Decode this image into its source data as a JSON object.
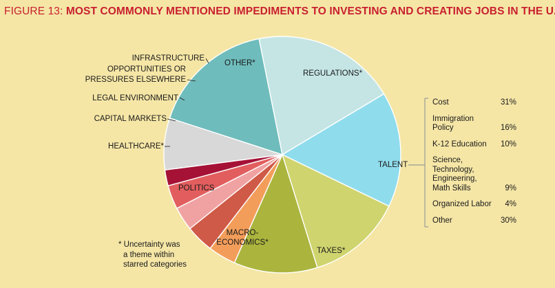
{
  "title": {
    "prefix": "FIGURE 13:",
    "main": "MOST COMMONLY MENTIONED IMPEDIMENTS TO INVESTING AND CREATING JOBS IN THE U.S."
  },
  "colors": {
    "background": "#f5e6a6",
    "title": "#c8202f",
    "bracket": "#999999"
  },
  "chart_data": {
    "type": "pie",
    "title": "MOST COMMONLY MENTIONED IMPEDIMENTS TO INVESTING AND CREATING JOBS IN THE U.S.",
    "slices": [
      {
        "label": "REGULATIONS*",
        "value": 15.5,
        "color": "#6fbcbc"
      },
      {
        "label": "TALENT",
        "value": 18.0,
        "color": "#c5e5e5"
      },
      {
        "label": "TAXES*",
        "value": 14.5,
        "color": "#8fdcec"
      },
      {
        "label": "MACRO-ECONOMICS*",
        "value": 12.0,
        "color": "#cfd46e"
      },
      {
        "label": "POLITICS",
        "value": 10.5,
        "color": "#abb53e"
      },
      {
        "label": "HEALTHCARE*",
        "value": 3.5,
        "color": "#f39d5a"
      },
      {
        "label": "CAPITAL MARKETS",
        "value": 3.5,
        "color": "#cf5a48"
      },
      {
        "label": "LEGAL ENVIRONMENT",
        "value": 3.0,
        "color": "#f0a2a2"
      },
      {
        "label": "OPPORTUNITIES OR PRESSURES ELSEWHERE",
        "value": 3.0,
        "color": "#e25e5e"
      },
      {
        "label": "INFRASTRUCTURE",
        "value": 2.0,
        "color": "#a51236"
      },
      {
        "label": "OTHER*",
        "value": 6.5,
        "color": "#d8d8d8"
      }
    ],
    "talent_breakdown": [
      {
        "label": "Cost",
        "value": "31%"
      },
      {
        "label": "Immigration\nPolicy",
        "value": "16%"
      },
      {
        "label": "K-12 Education",
        "value": "10%"
      },
      {
        "label": "Science,\nTechnology,\nEngineering,\nMath Skills",
        "value": "9%"
      },
      {
        "label": "Organized Labor",
        "value": "4%"
      },
      {
        "label": "Other",
        "value": "30%"
      }
    ]
  },
  "labels": {
    "infrastructure": "INFRASTRUCTURE",
    "opportunities_1": "OPPORTUNITIES OR",
    "opportunities_2": "PRESSURES ELSEWHERE",
    "legal": "LEGAL ENVIRONMENT",
    "capital": "CAPITAL MARKETS",
    "healthcare": "HEALTHCARE*",
    "politics": "POLITICS",
    "macro_1": "MACRO-",
    "macro_2": "ECONOMICS*",
    "taxes": "TAXES*",
    "talent": "TALENT",
    "regulations": "REGULATIONS*",
    "other": "OTHER*"
  },
  "footnote": {
    "line1": "* Uncertainty was",
    "line2": "a theme within",
    "line3": "starred categories"
  }
}
